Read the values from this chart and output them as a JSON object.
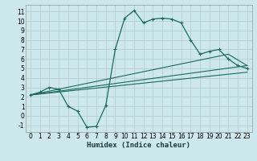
{
  "xlabel": "Humidex (Indice chaleur)",
  "bg_color": "#cce8ed",
  "grid_color": "#b8cdd0",
  "line_color": "#1a6b5a",
  "xlim": [
    -0.5,
    23.5
  ],
  "ylim": [
    -1.7,
    11.7
  ],
  "xticks": [
    0,
    1,
    2,
    3,
    4,
    5,
    6,
    7,
    8,
    9,
    10,
    11,
    12,
    13,
    14,
    15,
    16,
    17,
    18,
    19,
    20,
    21,
    22,
    23
  ],
  "yticks": [
    -1,
    0,
    1,
    2,
    3,
    4,
    5,
    6,
    7,
    8,
    9,
    10,
    11
  ],
  "main_x": [
    0,
    1,
    2,
    3,
    4,
    5,
    6,
    7,
    8,
    9,
    10,
    11,
    12,
    13,
    14,
    15,
    16,
    17,
    18,
    19,
    20,
    21,
    22,
    23
  ],
  "main_y": [
    2.2,
    2.5,
    3.0,
    2.8,
    1.0,
    0.5,
    -1.2,
    -1.1,
    1.1,
    7.0,
    10.3,
    11.1,
    9.8,
    10.2,
    10.3,
    10.2,
    9.8,
    8.0,
    6.5,
    6.8,
    7.0,
    6.0,
    5.3,
    5.0
  ],
  "line1_x": [
    0,
    23
  ],
  "line1_y": [
    2.2,
    4.6
  ],
  "line2_x": [
    0,
    23
  ],
  "line2_y": [
    2.2,
    5.3
  ],
  "line3_x": [
    0,
    21,
    23
  ],
  "line3_y": [
    2.2,
    6.5,
    5.3
  ],
  "tick_fontsize": 5.5,
  "xlabel_fontsize": 6.5
}
